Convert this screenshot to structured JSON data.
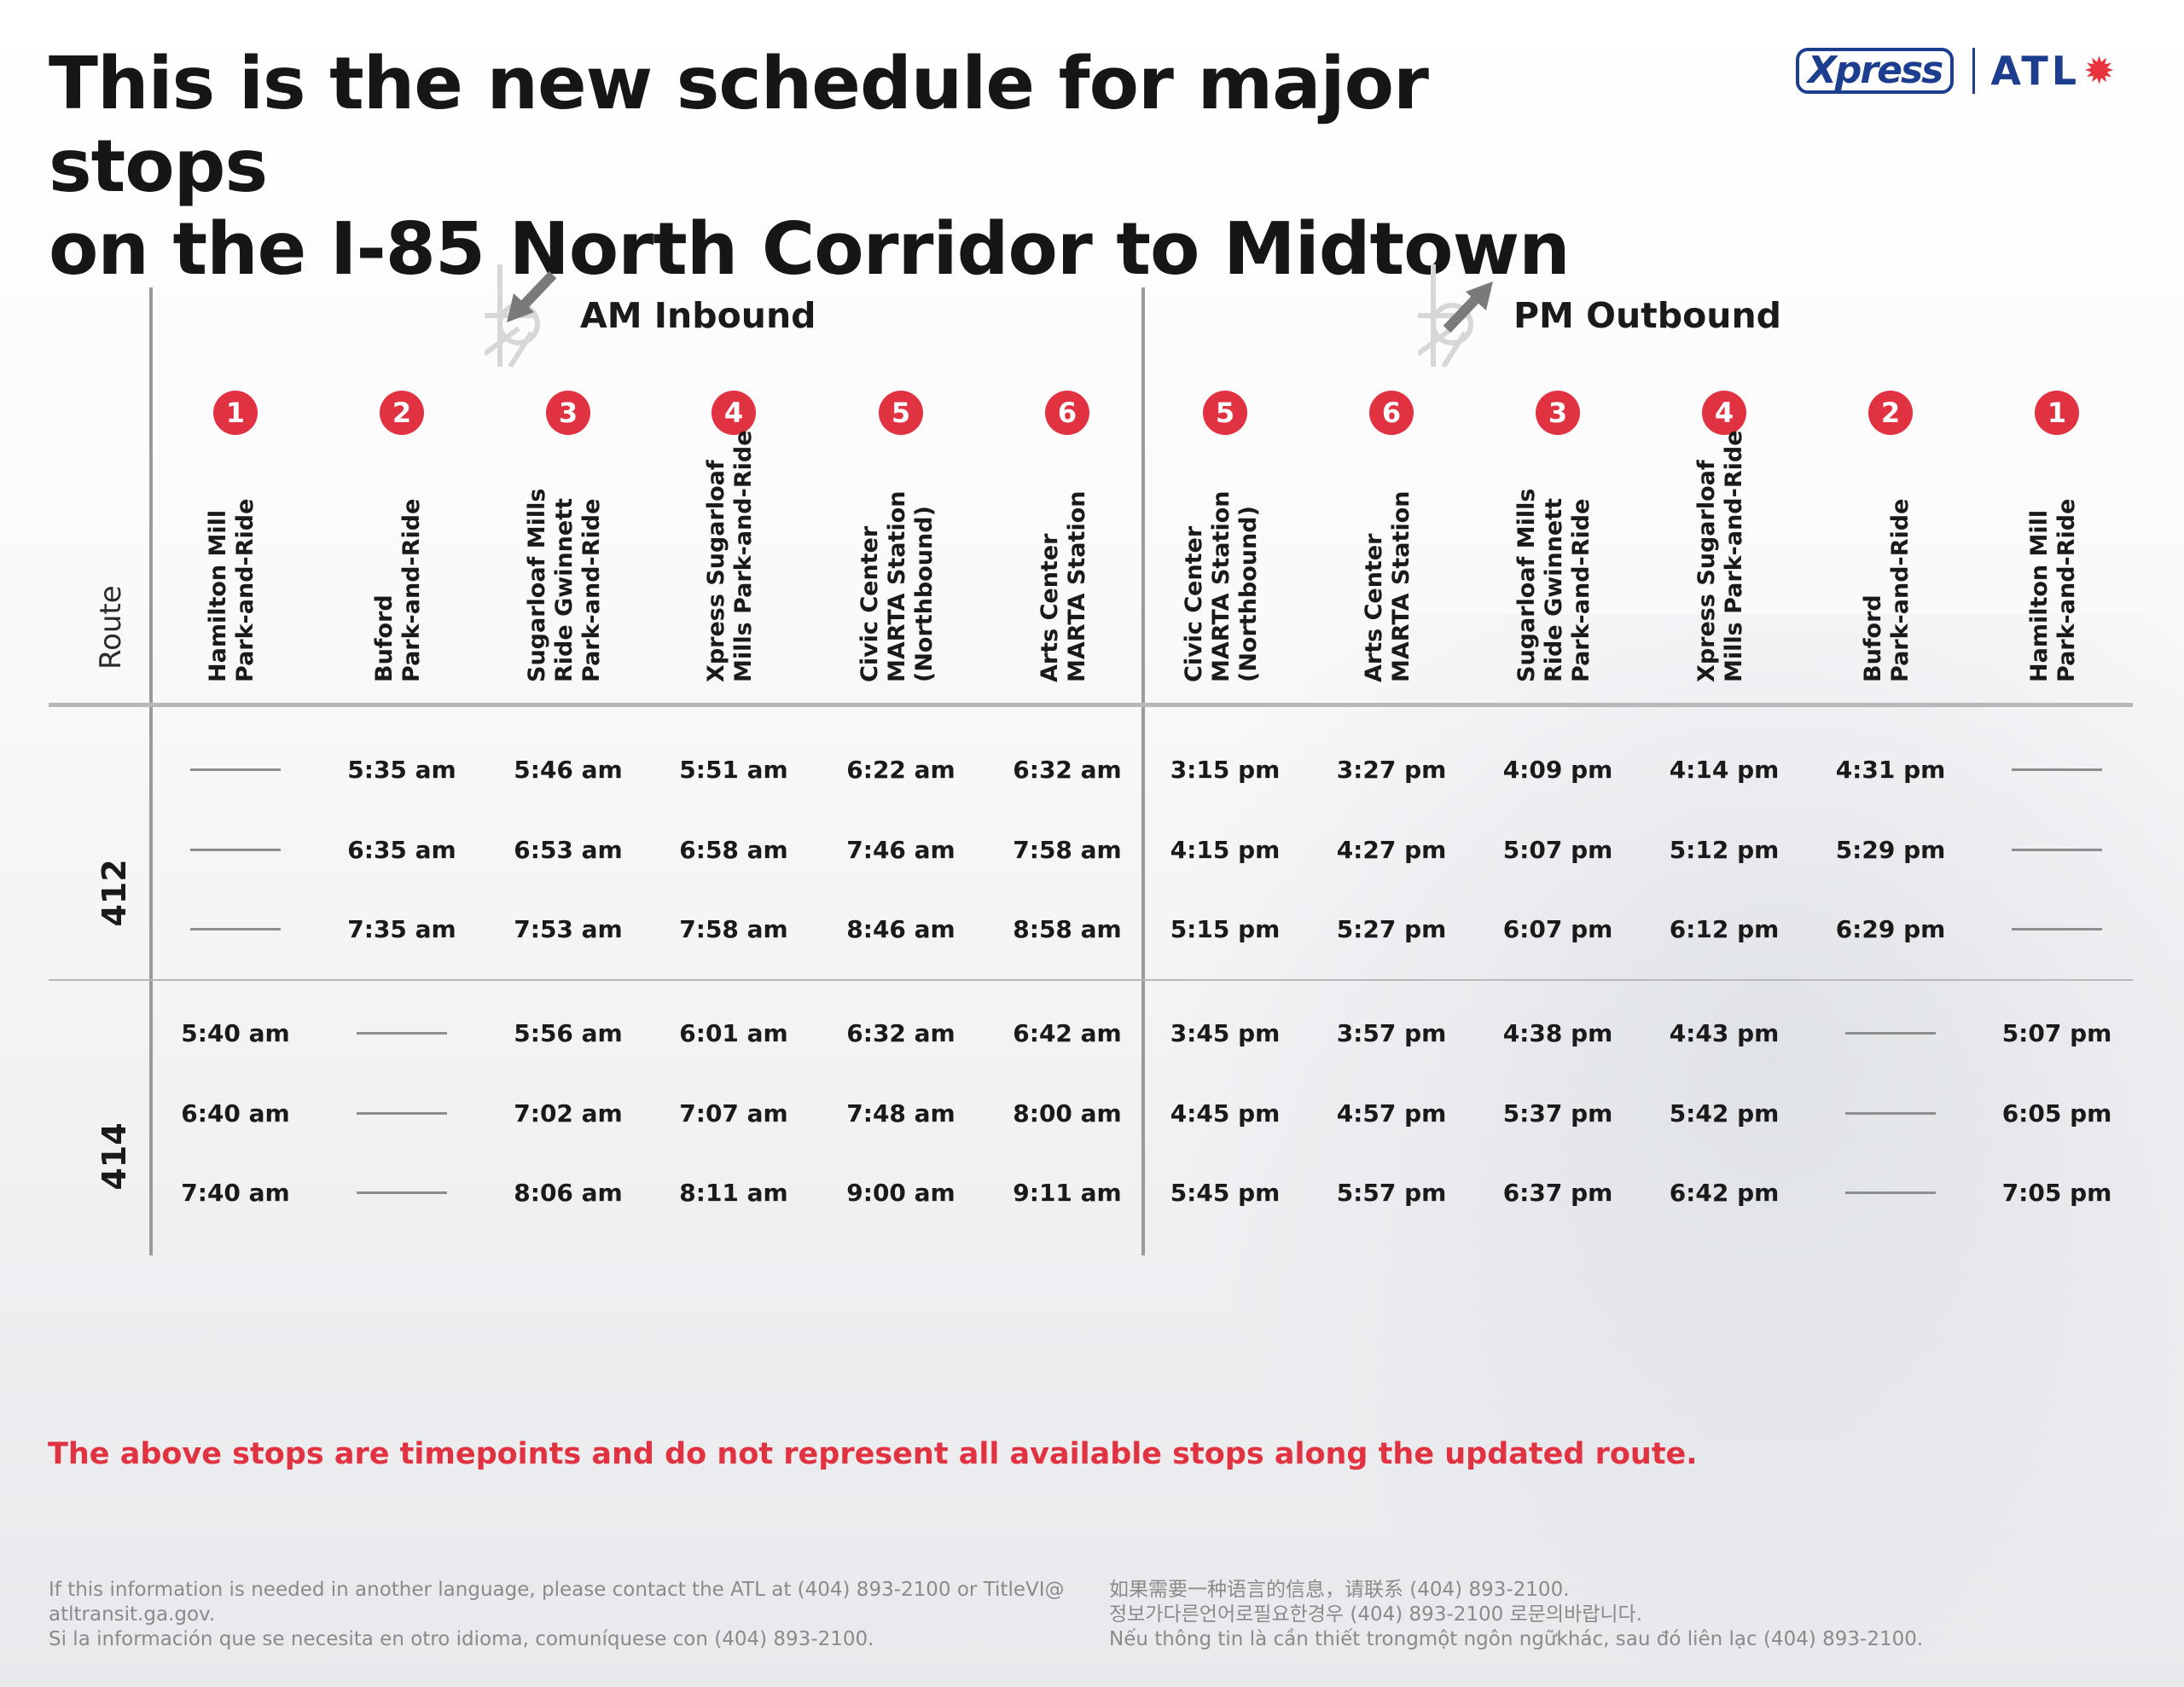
{
  "title": {
    "line1": "This is the new schedule for major stops",
    "line2": "on the I-85 North Corridor to Midtown"
  },
  "logo": {
    "xpress": "Xpress",
    "atl": "ATL",
    "star_icon": "sun-star-icon",
    "brand_color": "#1d3e8f",
    "accent_color": "#e03240"
  },
  "table": {
    "route_header": "Route",
    "am_label": "AM Inbound",
    "pm_label": "PM Outbound",
    "columns": [
      {
        "num": "1",
        "lines": [
          "Hamilton Mill",
          "Park-and-Ride"
        ]
      },
      {
        "num": "2",
        "lines": [
          "Buford",
          "Park-and-Ride"
        ]
      },
      {
        "num": "3",
        "lines": [
          "Sugarloaf Mills",
          "Ride Gwinnett",
          "Park-and-Ride"
        ]
      },
      {
        "num": "4",
        "lines": [
          "Xpress Sugarloaf",
          "Mills Park-and-Ride"
        ]
      },
      {
        "num": "5",
        "lines": [
          "Civic Center",
          "MARTA Station",
          "(Northbound)"
        ]
      },
      {
        "num": "6",
        "lines": [
          "Arts Center",
          "MARTA Station"
        ]
      },
      {
        "num": "5",
        "lines": [
          "Civic Center",
          "MARTA Station",
          "(Northbound)"
        ]
      },
      {
        "num": "6",
        "lines": [
          "Arts Center",
          "MARTA Station"
        ]
      },
      {
        "num": "3",
        "lines": [
          "Sugarloaf Mills",
          "Ride Gwinnett",
          "Park-and-Ride"
        ]
      },
      {
        "num": "4",
        "lines": [
          "Xpress Sugarloaf",
          "Mills Park-and-Ride"
        ]
      },
      {
        "num": "2",
        "lines": [
          "Buford",
          "Park-and-Ride"
        ]
      },
      {
        "num": "1",
        "lines": [
          "Hamilton Mill",
          "Park-and-Ride"
        ]
      }
    ],
    "routes": [
      {
        "route": "412",
        "rows": [
          [
            "",
            "5:35 am",
            "5:46 am",
            "5:51 am",
            "6:22 am",
            "6:32 am",
            "3:15 pm",
            "3:27 pm",
            "4:09 pm",
            "4:14 pm",
            "4:31 pm",
            ""
          ],
          [
            "",
            "6:35 am",
            "6:53 am",
            "6:58 am",
            "7:46 am",
            "7:58 am",
            "4:15 pm",
            "4:27 pm",
            "5:07 pm",
            "5:12 pm",
            "5:29 pm",
            ""
          ],
          [
            "",
            "7:35 am",
            "7:53 am",
            "7:58 am",
            "8:46 am",
            "8:58 am",
            "5:15 pm",
            "5:27 pm",
            "6:07 pm",
            "6:12 pm",
            "6:29 pm",
            ""
          ]
        ]
      },
      {
        "route": "414",
        "rows": [
          [
            "5:40 am",
            "",
            "5:56 am",
            "6:01 am",
            "6:32 am",
            "6:42 am",
            "3:45 pm",
            "3:57 pm",
            "4:38 pm",
            "4:43 pm",
            "",
            "5:07 pm"
          ],
          [
            "6:40 am",
            "",
            "7:02 am",
            "7:07 am",
            "7:48 am",
            "8:00 am",
            "4:45 pm",
            "4:57 pm",
            "5:37 pm",
            "5:42 pm",
            "",
            "6:05 pm"
          ],
          [
            "7:40 am",
            "",
            "8:06 am",
            "8:11 am",
            "9:00 am",
            "9:11 am",
            "5:45 pm",
            "5:57 pm",
            "6:37 pm",
            "6:42 pm",
            "",
            "7:05 pm"
          ]
        ]
      }
    ]
  },
  "note": "The above stops are timepoints and do not represent all available stops along the updated route.",
  "footer": {
    "left": [
      "If this information is needed in another language, please contact the ATL at (404) 893-2100 or TitleVI@",
      "atltransit.ga.gov.",
      "Si la información que se necesita en otro idioma, comuníquese con (404) 893-2100."
    ],
    "right": [
      "如果需要一种语言的信息，请联系 (404) 893-2100.",
      "정보가다른언어로필요한경우 (404) 893-2100 로문의바랍니다.",
      "Nếu thông tin là cần thiết trongmột ngôn ngữkhác, sau đó liên lạc (404) 893-2100."
    ]
  }
}
